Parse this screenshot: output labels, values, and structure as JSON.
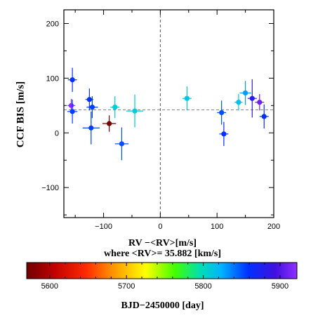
{
  "chart_data": {
    "type": "scatter",
    "xlabel": "RV −<RV>[m/s]",
    "xlabel_note": "where <RV>= 35.882 [km/s]",
    "ylabel": "CCF BIS [m/s]",
    "xlim": [
      -170,
      200
    ],
    "ylim": [
      -155,
      225
    ],
    "x_ticks": [
      -100,
      0,
      100,
      200
    ],
    "x_tick_labels": [
      "−100",
      "0",
      "100",
      "200"
    ],
    "y_ticks": [
      -100,
      0,
      100,
      200
    ],
    "y_tick_labels": [
      "−100",
      "0",
      "100",
      "200"
    ],
    "reference_lines": {
      "vertical_x": 0,
      "horizontal_y": 42
    },
    "colorbar": {
      "label": "BJD−2450000 [day]",
      "range": [
        5570,
        5922
      ],
      "ticks": [
        5600,
        5700,
        5800,
        5900
      ],
      "tick_labels": [
        "5600",
        "5700",
        "5800",
        "5900"
      ],
      "colormap": "rainbow (dark red → red → orange → yellow → green → cyan → blue → violet)"
    },
    "points": [
      {
        "x": -155,
        "y": 97,
        "xerr": 8,
        "yerr": 22,
        "t": 5860
      },
      {
        "x": -157,
        "y": 50,
        "xerr": 7,
        "yerr": 12,
        "t": 5920
      },
      {
        "x": -155,
        "y": 39,
        "xerr": 9,
        "yerr": 22,
        "t": 5855
      },
      {
        "x": -125,
        "y": 61,
        "xerr": 7,
        "yerr": 20,
        "t": 5858
      },
      {
        "x": -120,
        "y": 47,
        "xerr": 10,
        "yerr": 20,
        "t": 5855
      },
      {
        "x": -122,
        "y": 9,
        "xerr": 15,
        "yerr": 30,
        "t": 5855
      },
      {
        "x": -90,
        "y": 17,
        "xerr": 12,
        "yerr": 15,
        "t": 5573
      },
      {
        "x": -80,
        "y": 47,
        "xerr": 8,
        "yerr": 20,
        "t": 5808
      },
      {
        "x": -68,
        "y": -20,
        "xerr": 12,
        "yerr": 30,
        "t": 5850
      },
      {
        "x": -45,
        "y": 40,
        "xerr": 15,
        "yerr": 30,
        "t": 5810
      },
      {
        "x": 47,
        "y": 63,
        "xerr": 8,
        "yerr": 22,
        "t": 5812
      },
      {
        "x": 108,
        "y": 37,
        "xerr": 8,
        "yerr": 22,
        "t": 5850
      },
      {
        "x": 112,
        "y": -2,
        "xerr": 8,
        "yerr": 22,
        "t": 5858
      },
      {
        "x": 138,
        "y": 56,
        "xerr": 7,
        "yerr": 15,
        "t": 5815
      },
      {
        "x": 150,
        "y": 73,
        "xerr": 10,
        "yerr": 22,
        "t": 5830
      },
      {
        "x": 162,
        "y": 63,
        "xerr": 8,
        "yerr": 35,
        "t": 5880
      },
      {
        "x": 175,
        "y": 56,
        "xerr": 8,
        "yerr": 15,
        "t": 5910
      },
      {
        "x": 183,
        "y": 30,
        "xerr": 8,
        "yerr": 22,
        "t": 5860
      }
    ]
  }
}
